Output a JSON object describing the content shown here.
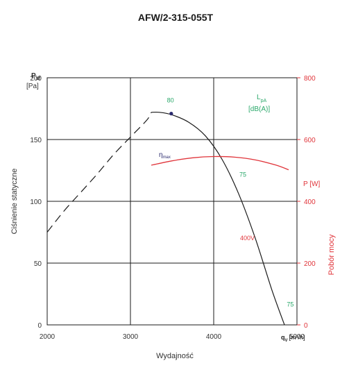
{
  "chart_data": {
    "type": "line",
    "title": "AFW/2-315-055T",
    "xlabel": "Wydajność",
    "x_unit_symbol": "q",
    "x_unit_sub": "V",
    "x_unit_rest": "[m³/h]",
    "ylabel": "Ciśnienie statyczne",
    "y_unit_symbol": "P",
    "y_unit_sub": "sf",
    "y_unit_rest": "[Pa]",
    "y2label": "Pobór mocy",
    "y2_unit": "P [W]",
    "lpa_label_main": "L",
    "lpa_label_sub": "pA",
    "lpa_label_unit": "[dB(A)]",
    "xlim": [
      2000,
      5000
    ],
    "ylim": [
      0,
      200
    ],
    "y2lim": [
      0,
      800
    ],
    "x_ticks": [
      2000,
      3000,
      4000,
      5000
    ],
    "y_ticks": [
      0,
      50,
      100,
      150,
      200
    ],
    "y2_ticks": [
      0,
      200,
      400,
      600,
      800
    ],
    "grid": true,
    "colors": {
      "pressure": "#1a1a1a",
      "power": "#e0343a",
      "lpa": "#2aa86a",
      "eta_point": "#2b2b6e"
    },
    "series": [
      {
        "name": "",
        "axis": "left",
        "style": "dashed",
        "x": [
          2000,
          2200,
          2400,
          2600,
          2800,
          3000,
          3200,
          3250
        ],
        "y": [
          75,
          92,
          107,
          122,
          138,
          152,
          166,
          172
        ]
      },
      {
        "name": "",
        "axis": "left",
        "style": "solid",
        "x": [
          3250,
          3350,
          3500,
          3700,
          3900,
          4100,
          4300,
          4500,
          4700,
          4850
        ],
        "y": [
          172,
          172,
          170,
          164,
          153,
          134,
          106,
          70,
          28,
          0
        ]
      },
      {
        "name": "400V",
        "axis": "right",
        "style": "solid",
        "x": [
          3250,
          3500,
          3750,
          4000,
          4250,
          4500,
          4750,
          4900
        ],
        "y": [
          517,
          531,
          541,
          545,
          543,
          534,
          517,
          502
        ]
      }
    ],
    "eta_max": {
      "label_main": "η",
      "label_sub": "max",
      "x": 3490,
      "y": 171
    },
    "annotations": [
      {
        "text": "80",
        "x": 3480,
        "y": 180
      },
      {
        "text": "75",
        "x": 4350,
        "y": 120
      },
      {
        "text": "75",
        "x": 4920,
        "y": 15
      }
    ]
  }
}
